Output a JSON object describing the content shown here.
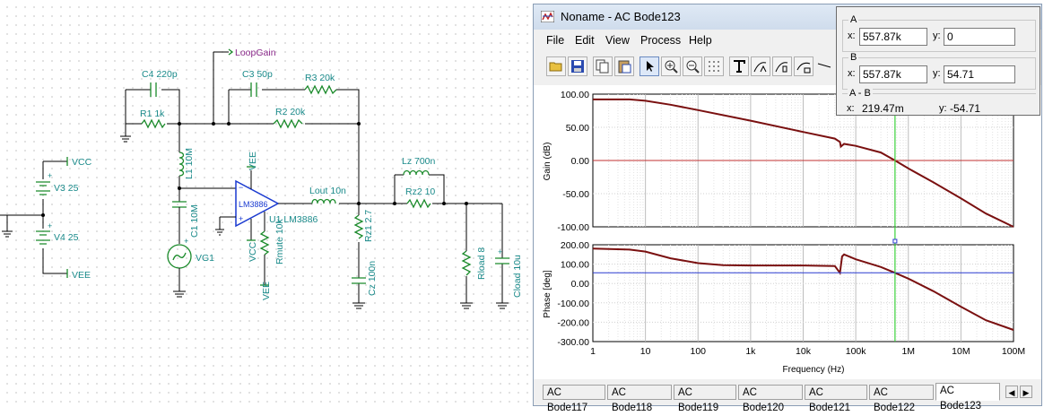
{
  "schematic": {
    "labels": {
      "loopgain": "LoopGain",
      "c4": "C4 220p",
      "c3": "C3 50p",
      "r3": "R3 20k",
      "r1": "R1 1k",
      "r2": "R2 20k",
      "l1": "L1 10M",
      "c1": "C1 10M",
      "vg1": "VG1",
      "vcc_net": "VCC",
      "vee_net": "VEE",
      "v3": "V3 25",
      "v4": "V4 25",
      "vee_top": "VEE",
      "opamp": "LM3886",
      "u1": "U1 LM3886",
      "vcc_bot": "VCC",
      "rmute": "Rmute 10k",
      "vee_bot": "VEE",
      "lout": "Lout 10n",
      "lz": "Lz 700n",
      "rz2": "Rz2 10",
      "rz1": "Rz1 2.7",
      "cz": "Cz 100n",
      "rload": "Rload 8",
      "cload": "Cload 10u"
    }
  },
  "window": {
    "title": "Noname - AC Bode123",
    "menu": [
      "File",
      "Edit",
      "View",
      "Process",
      "Help"
    ],
    "toolbar_icons": [
      "open-folder-icon",
      "save-icon",
      "copy-icon",
      "paste-icon",
      "pointer-icon",
      "zoom-in-icon",
      "zoom-100-icon",
      "grid-dots-icon",
      "text-tool-icon",
      "cursor-a-icon",
      "cursor-b-icon",
      "fit-icon",
      "line-tool-icon"
    ]
  },
  "cursor_panel": {
    "a": {
      "title": "A",
      "x": "557.87k",
      "y": "0"
    },
    "b": {
      "title": "B",
      "x": "557.87k",
      "y": "54.71"
    },
    "diff": {
      "title": "A - B",
      "x": "219.47m",
      "y": "-54.71"
    },
    "x_label": "x:",
    "y_label": "y:"
  },
  "chart_data": [
    {
      "type": "line",
      "title": "",
      "ylabel": "Gain (dB)",
      "xlabel": "",
      "x_scale": "log",
      "xlim": [
        1,
        100000000
      ],
      "ylim": [
        -100,
        100
      ],
      "yticks": [
        "100.00",
        "50.00",
        "0.00",
        "-50.00",
        "-100.00"
      ],
      "grid": true,
      "series": [
        {
          "color": "#7a1010",
          "x": [
            1,
            5,
            10,
            30,
            100,
            1000,
            10000,
            40000,
            50000,
            52000,
            60000,
            100000,
            300000,
            557870,
            1000000,
            3000000,
            10000000,
            30000000,
            100000000
          ],
          "y": [
            92,
            92,
            90,
            84,
            76,
            60,
            43,
            33,
            28,
            21,
            25,
            22,
            12,
            0,
            -12,
            -33,
            -57,
            -80,
            -100
          ]
        },
        {
          "color": "#c03030",
          "x": [
            1,
            100000000
          ],
          "y": [
            0,
            0
          ]
        }
      ]
    },
    {
      "type": "line",
      "title": "",
      "ylabel": "Phase [deg]",
      "xlabel": "Frequency (Hz)",
      "x_scale": "log",
      "xlim": [
        1,
        100000000
      ],
      "ylim": [
        -300,
        200
      ],
      "yticks": [
        "200.00",
        "100.00",
        "0.00",
        "-100.00",
        "-200.00",
        "-300.00"
      ],
      "xticks": [
        "1",
        "10",
        "100",
        "1k",
        "10k",
        "100k",
        "1M",
        "10M",
        "100M"
      ],
      "grid": true,
      "series": [
        {
          "color": "#7a1010",
          "x": [
            1,
            5,
            10,
            30,
            100,
            300,
            1000,
            10000,
            40000,
            50000,
            55000,
            60000,
            100000,
            300000,
            557870,
            1000000,
            3000000,
            10000000,
            30000000,
            100000000
          ],
          "y": [
            180,
            175,
            165,
            130,
            105,
            95,
            93,
            93,
            90,
            55,
            140,
            150,
            125,
            85,
            55,
            25,
            -40,
            -120,
            -190,
            -240
          ]
        },
        {
          "color": "#2a3ad0",
          "x": [
            1,
            100000000
          ],
          "y": [
            55,
            55
          ]
        }
      ],
      "cursor_x": 557870
    }
  ],
  "tabs": {
    "items": [
      "AC Bode117",
      "AC Bode118",
      "AC Bode119",
      "AC Bode120",
      "AC Bode121",
      "AC Bode122",
      "AC Bode123"
    ],
    "active": "AC Bode123",
    "nav_left": "◀",
    "nav_right": "▶"
  }
}
